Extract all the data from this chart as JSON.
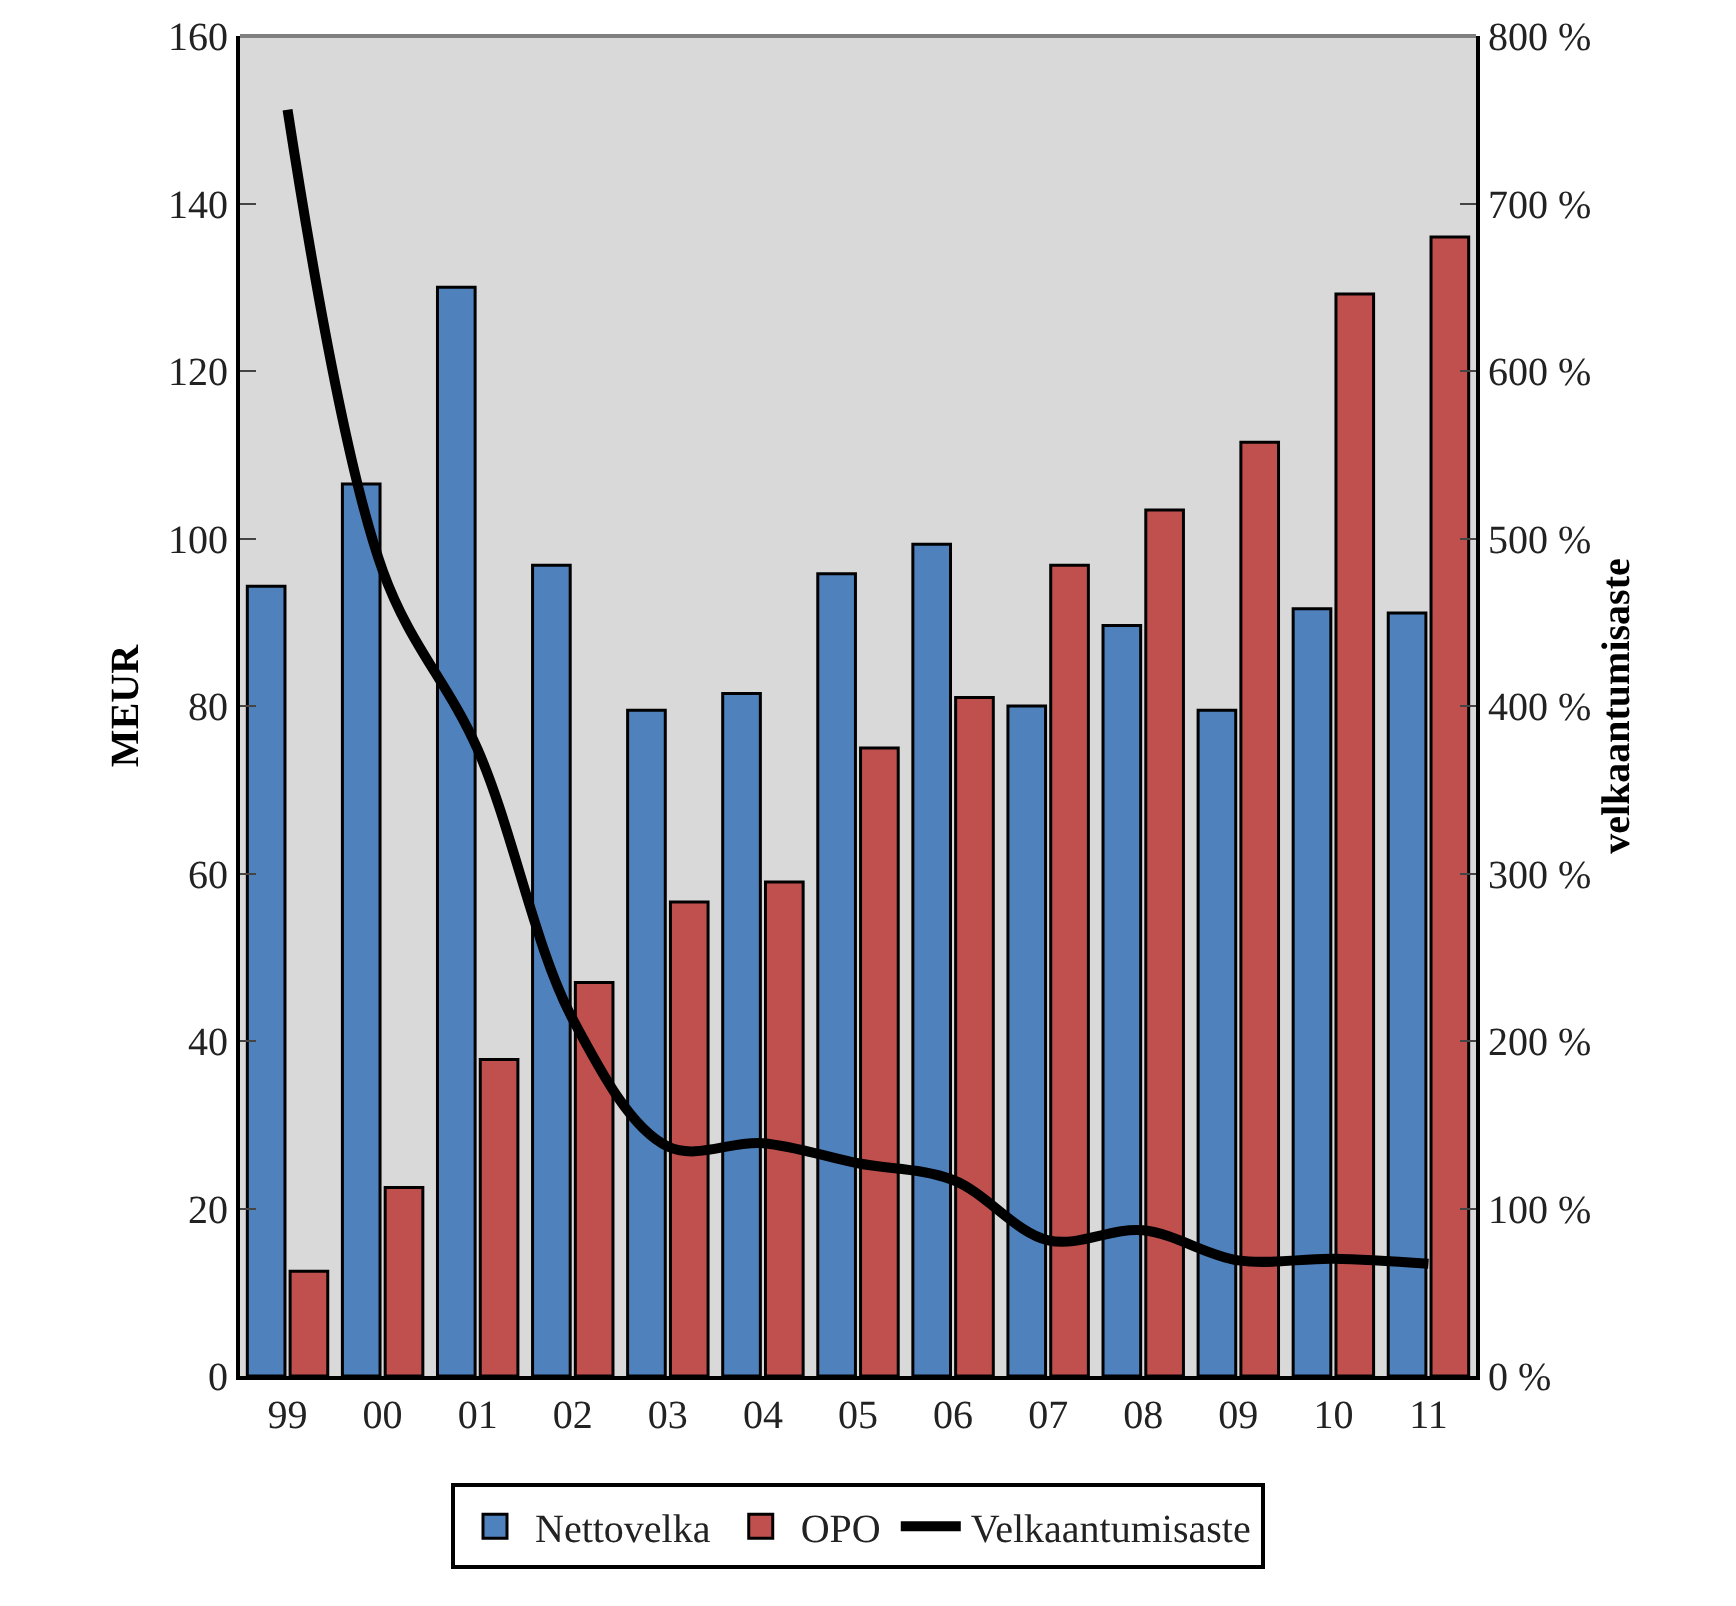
{
  "chart_data": {
    "type": "bar",
    "categories": [
      "99",
      "00",
      "01",
      "02",
      "03",
      "04",
      "05",
      "06",
      "07",
      "08",
      "09",
      "10",
      "11"
    ],
    "series": [
      {
        "name": "Nettovelka",
        "color": "#4f81bd",
        "values": [
          94.3,
          106.5,
          130,
          96.8,
          79.5,
          81.5,
          95.8,
          99.3,
          80,
          89.6,
          79.5,
          91.6,
          91.1
        ]
      },
      {
        "name": "OPO",
        "color": "#c0504d",
        "values": [
          12.5,
          22.5,
          37.8,
          47,
          56.6,
          59,
          75,
          81,
          96.8,
          103.4,
          111.5,
          129.2,
          136
        ]
      },
      {
        "name": "Velkaantumisaste",
        "type": "line",
        "axis": "y2",
        "color": "#000000",
        "values": [
          756,
          481,
          374,
          213,
          137,
          139,
          127,
          117,
          81,
          87,
          69,
          70,
          67
        ]
      }
    ],
    "ylabel": "MEUR",
    "y2label": "velkaantumisaste",
    "ylim": [
      0,
      160
    ],
    "yticks": [
      0,
      20,
      40,
      60,
      80,
      100,
      120,
      140,
      160
    ],
    "y2lim": [
      0,
      800
    ],
    "y2ticks": [
      {
        "value": 0,
        "label": "0 %"
      },
      {
        "value": 100,
        "label": "100 %"
      },
      {
        "value": 200,
        "label": "200 %"
      },
      {
        "value": 300,
        "label": "300 %"
      },
      {
        "value": 400,
        "label": "400 %"
      },
      {
        "value": 500,
        "label": "500 %"
      },
      {
        "value": 600,
        "label": "600 %"
      },
      {
        "value": 700,
        "label": "700 %"
      },
      {
        "value": 800,
        "label": "800 %"
      }
    ],
    "grid": false,
    "legend": "bottom",
    "marker": "none",
    "line_style": "solid"
  }
}
